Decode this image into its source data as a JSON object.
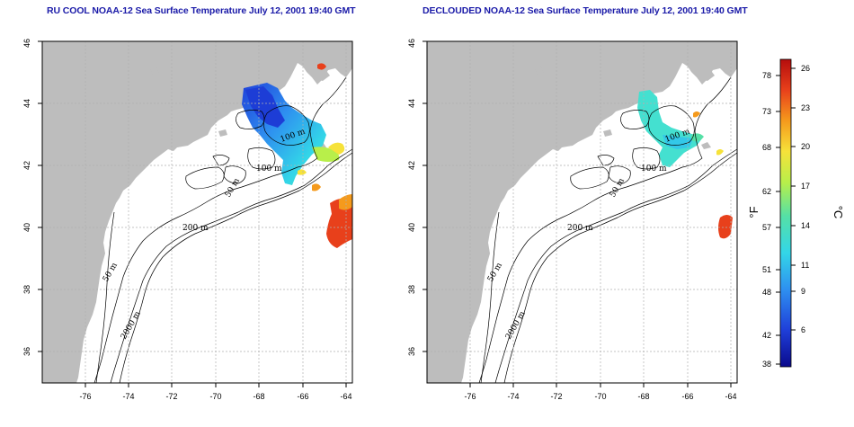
{
  "panels": [
    {
      "title": "RU COOL NOAA-12 Sea Surface Temperature July 12, 2001 19:40 GMT",
      "x_ticks": [
        "-76",
        "-74",
        "-72",
        "-70",
        "-68",
        "-66",
        "-64"
      ],
      "y_ticks": [
        "36",
        "38",
        "40",
        "42",
        "44",
        "46"
      ],
      "contour_labels": [
        "100 m",
        "100 m",
        "50 m",
        "200 m",
        "50 m",
        "2000 m"
      ]
    },
    {
      "title": "DECLOUDED NOAA-12 Sea Surface Temperature July 12, 2001 19:40 GMT",
      "x_ticks": [
        "-76",
        "-74",
        "-72",
        "-70",
        "-68",
        "-66",
        "-64"
      ],
      "y_ticks": [
        "36",
        "38",
        "40",
        "42",
        "44",
        "46"
      ],
      "contour_labels": [
        "100 m",
        "100 m",
        "50 m",
        "200 m",
        "50 m",
        "2000 m"
      ]
    }
  ],
  "colorbar": {
    "f_label": "°F",
    "c_label": "°C",
    "f_ticks": [
      "78",
      "73",
      "68",
      "62",
      "57",
      "51",
      "48",
      "42",
      "38"
    ],
    "c_ticks": [
      "26",
      "23",
      "20",
      "17",
      "14",
      "11",
      "9",
      "6"
    ],
    "colors": [
      "#0a0a8c",
      "#1f3fd9",
      "#2e8ff0",
      "#33d6e8",
      "#55e0a6",
      "#b8ef4a",
      "#f6e23a",
      "#f59a1c",
      "#e8401b",
      "#b50d0d"
    ]
  },
  "colors": {
    "land": "#bdbdbd",
    "ocean": "#ffffff",
    "contour": "#000000",
    "grid": "#b0b0b0",
    "title": "#1a1aa8"
  }
}
